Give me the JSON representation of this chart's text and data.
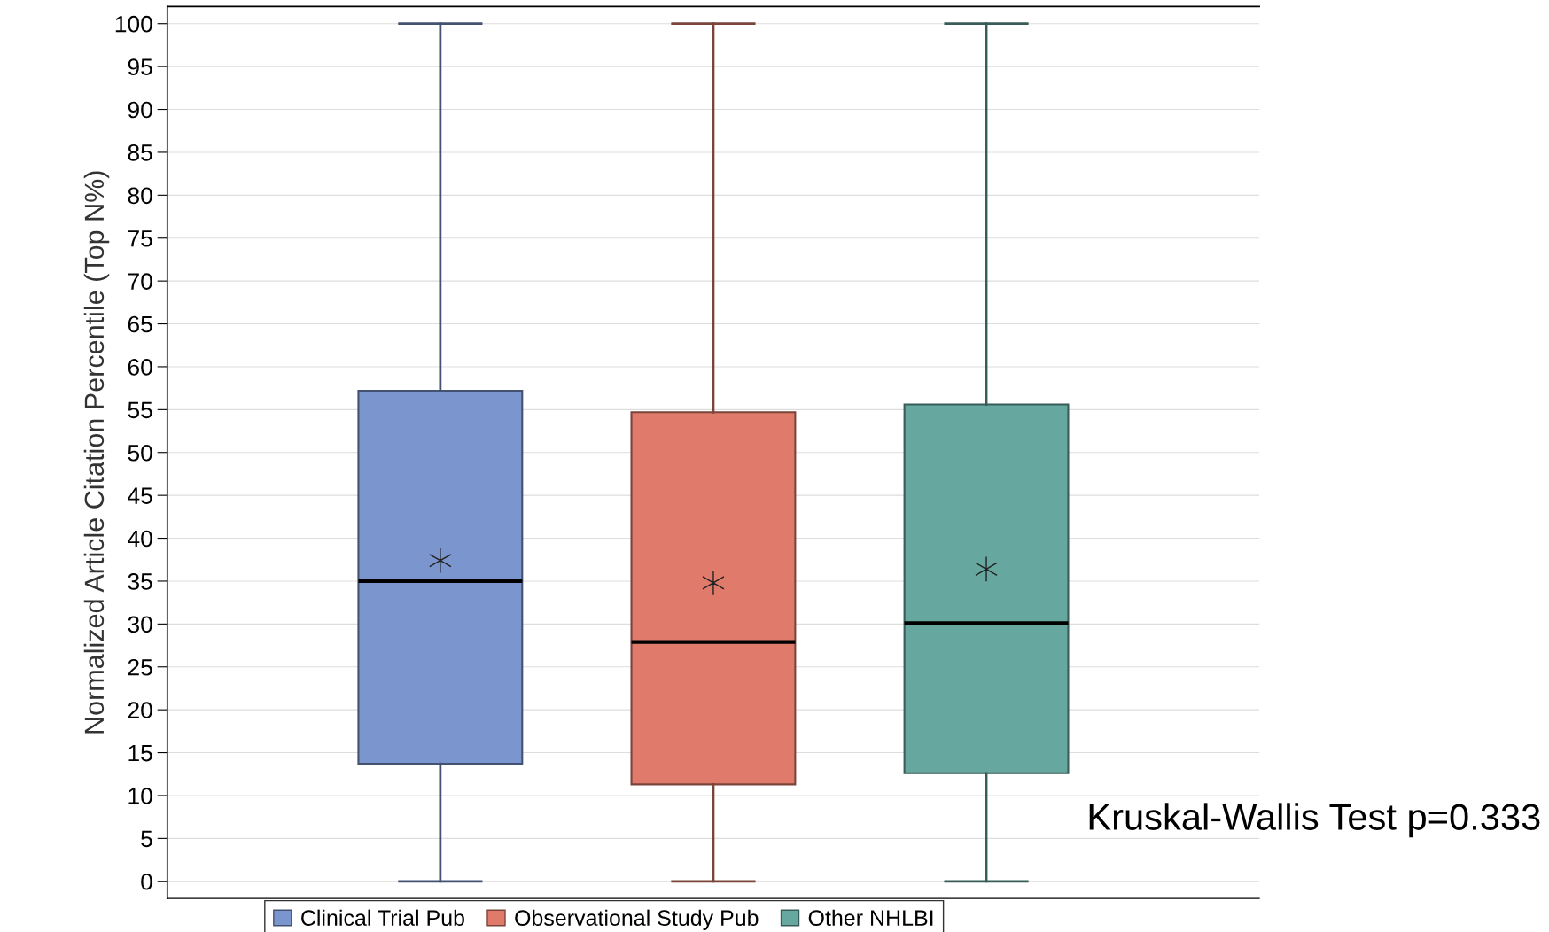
{
  "chart_data": {
    "type": "box",
    "ylabel": "Normalized Article Citation Percentile (Top N%)",
    "categories": [
      null,
      null,
      null
    ],
    "series": [
      {
        "name": "Clinical Trial Pub",
        "color": "#7b96cf",
        "boxes": [
          {
            "low": 0,
            "q1": 13.7,
            "median": 35,
            "q3": 57.2,
            "high": 100,
            "mean": 37.4
          },
          null,
          null
        ]
      },
      {
        "name": "Observational Study Pub",
        "color": "#e07b6b",
        "boxes": [
          null,
          {
            "low": 0,
            "q1": 11.3,
            "median": 27.9,
            "q3": 54.7,
            "high": 100,
            "mean": 34.8
          },
          null
        ]
      },
      {
        "name": "Other NHLBI",
        "color": "#66a8a0",
        "boxes": [
          null,
          null,
          {
            "low": 0,
            "q1": 12.6,
            "median": 30.1,
            "q3": 55.6,
            "high": 100,
            "mean": 36.4
          }
        ]
      }
    ],
    "ylim": [
      -2,
      102
    ],
    "yticks": [
      0,
      5,
      10,
      15,
      20,
      25,
      30,
      35,
      40,
      45,
      50,
      55,
      60,
      65,
      70,
      75,
      80,
      85,
      90,
      95,
      100
    ],
    "grid": "y",
    "legend": "bottom",
    "tick_labels": "y",
    "annotations": [
      "Kruskal-Wallis Test p=0.333"
    ]
  }
}
